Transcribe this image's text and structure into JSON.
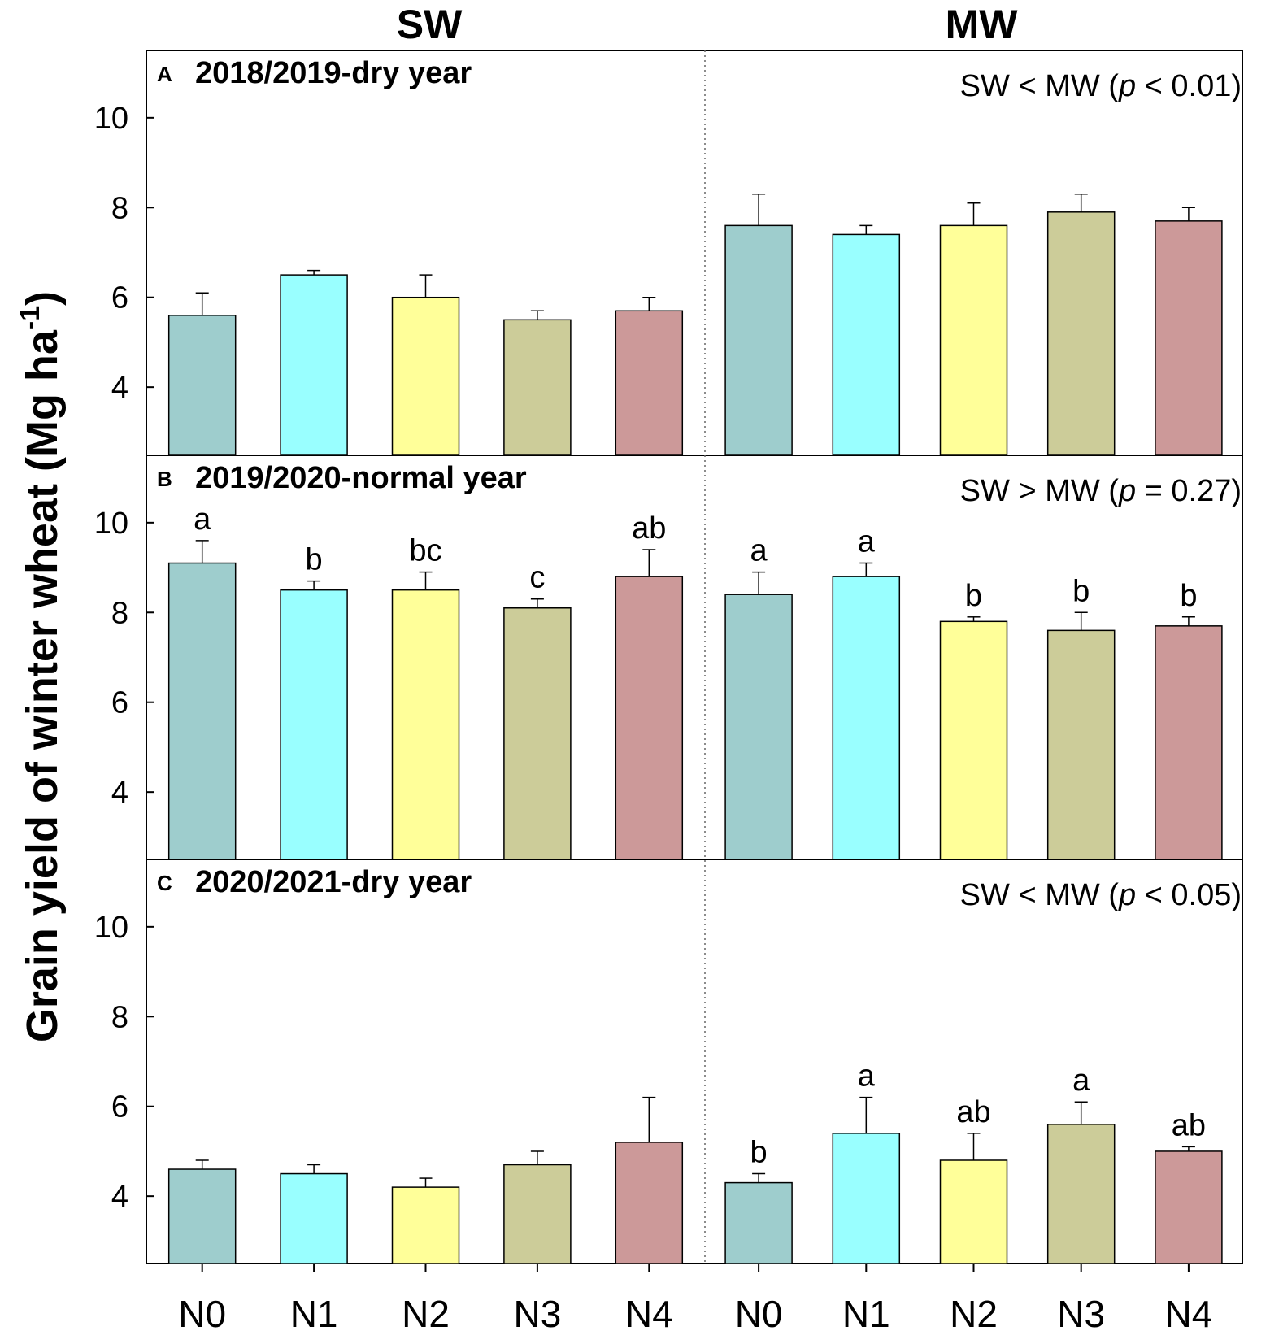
{
  "chart_data": {
    "type": "bar",
    "column_titles": [
      "SW",
      "MW"
    ],
    "ylabel_main": "Grain yield of winter wheat (Mg ha",
    "ylabel_sup": "-1",
    "ylabel_close": ")",
    "ylim": [
      2.5,
      11.5
    ],
    "yticks": [
      4,
      6,
      8,
      10
    ],
    "ytick_labels": [
      "4",
      "6",
      "8",
      "10"
    ],
    "categories": [
      "N0",
      "N1",
      "N2",
      "N3",
      "N4"
    ],
    "colors": [
      "#9ecdcd",
      "#99ffff",
      "#ffff99",
      "#cccc99",
      "#cc9999"
    ],
    "panels": [
      {
        "letter": "A",
        "title": "2018/2019-dry year",
        "annotation_pre": "SW < MW (",
        "annotation_p": "p",
        "annotation_post": " < 0.01)",
        "groups": [
          {
            "name": "SW",
            "values": [
              5.6,
              6.5,
              6.0,
              5.5,
              5.7
            ],
            "errors": [
              0.5,
              0.1,
              0.5,
              0.2,
              0.3
            ],
            "letters": [
              "",
              "",
              "",
              "",
              ""
            ]
          },
          {
            "name": "MW",
            "values": [
              7.6,
              7.4,
              7.6,
              7.9,
              7.7
            ],
            "errors": [
              0.7,
              0.2,
              0.5,
              0.4,
              0.3
            ],
            "letters": [
              "",
              "",
              "",
              "",
              ""
            ]
          }
        ]
      },
      {
        "letter": "B",
        "title": "2019/2020-normal year",
        "annotation_pre": "SW > MW (",
        "annotation_p": "p",
        "annotation_post": " = 0.27)",
        "groups": [
          {
            "name": "SW",
            "values": [
              9.1,
              8.5,
              8.5,
              8.1,
              8.8
            ],
            "errors": [
              0.5,
              0.2,
              0.4,
              0.2,
              0.6
            ],
            "letters": [
              "a",
              "b",
              "bc",
              "c",
              "ab"
            ]
          },
          {
            "name": "MW",
            "values": [
              8.4,
              8.8,
              7.8,
              7.6,
              7.7
            ],
            "errors": [
              0.5,
              0.3,
              0.1,
              0.4,
              0.2
            ],
            "letters": [
              "a",
              "a",
              "b",
              "b",
              "b"
            ]
          }
        ]
      },
      {
        "letter": "C",
        "title": "2020/2021-dry year",
        "annotation_pre": "SW < MW (",
        "annotation_p": "p",
        "annotation_post": " < 0.05)",
        "groups": [
          {
            "name": "SW",
            "values": [
              4.6,
              4.5,
              4.2,
              4.7,
              5.2
            ],
            "errors": [
              0.2,
              0.2,
              0.2,
              0.3,
              1.0
            ],
            "letters": [
              "",
              "",
              "",
              "",
              ""
            ]
          },
          {
            "name": "MW",
            "values": [
              4.3,
              5.4,
              4.8,
              5.6,
              5.0
            ],
            "errors": [
              0.2,
              0.8,
              0.6,
              0.5,
              0.1
            ],
            "letters": [
              "b",
              "a",
              "ab",
              "a",
              "ab"
            ]
          }
        ]
      }
    ]
  }
}
